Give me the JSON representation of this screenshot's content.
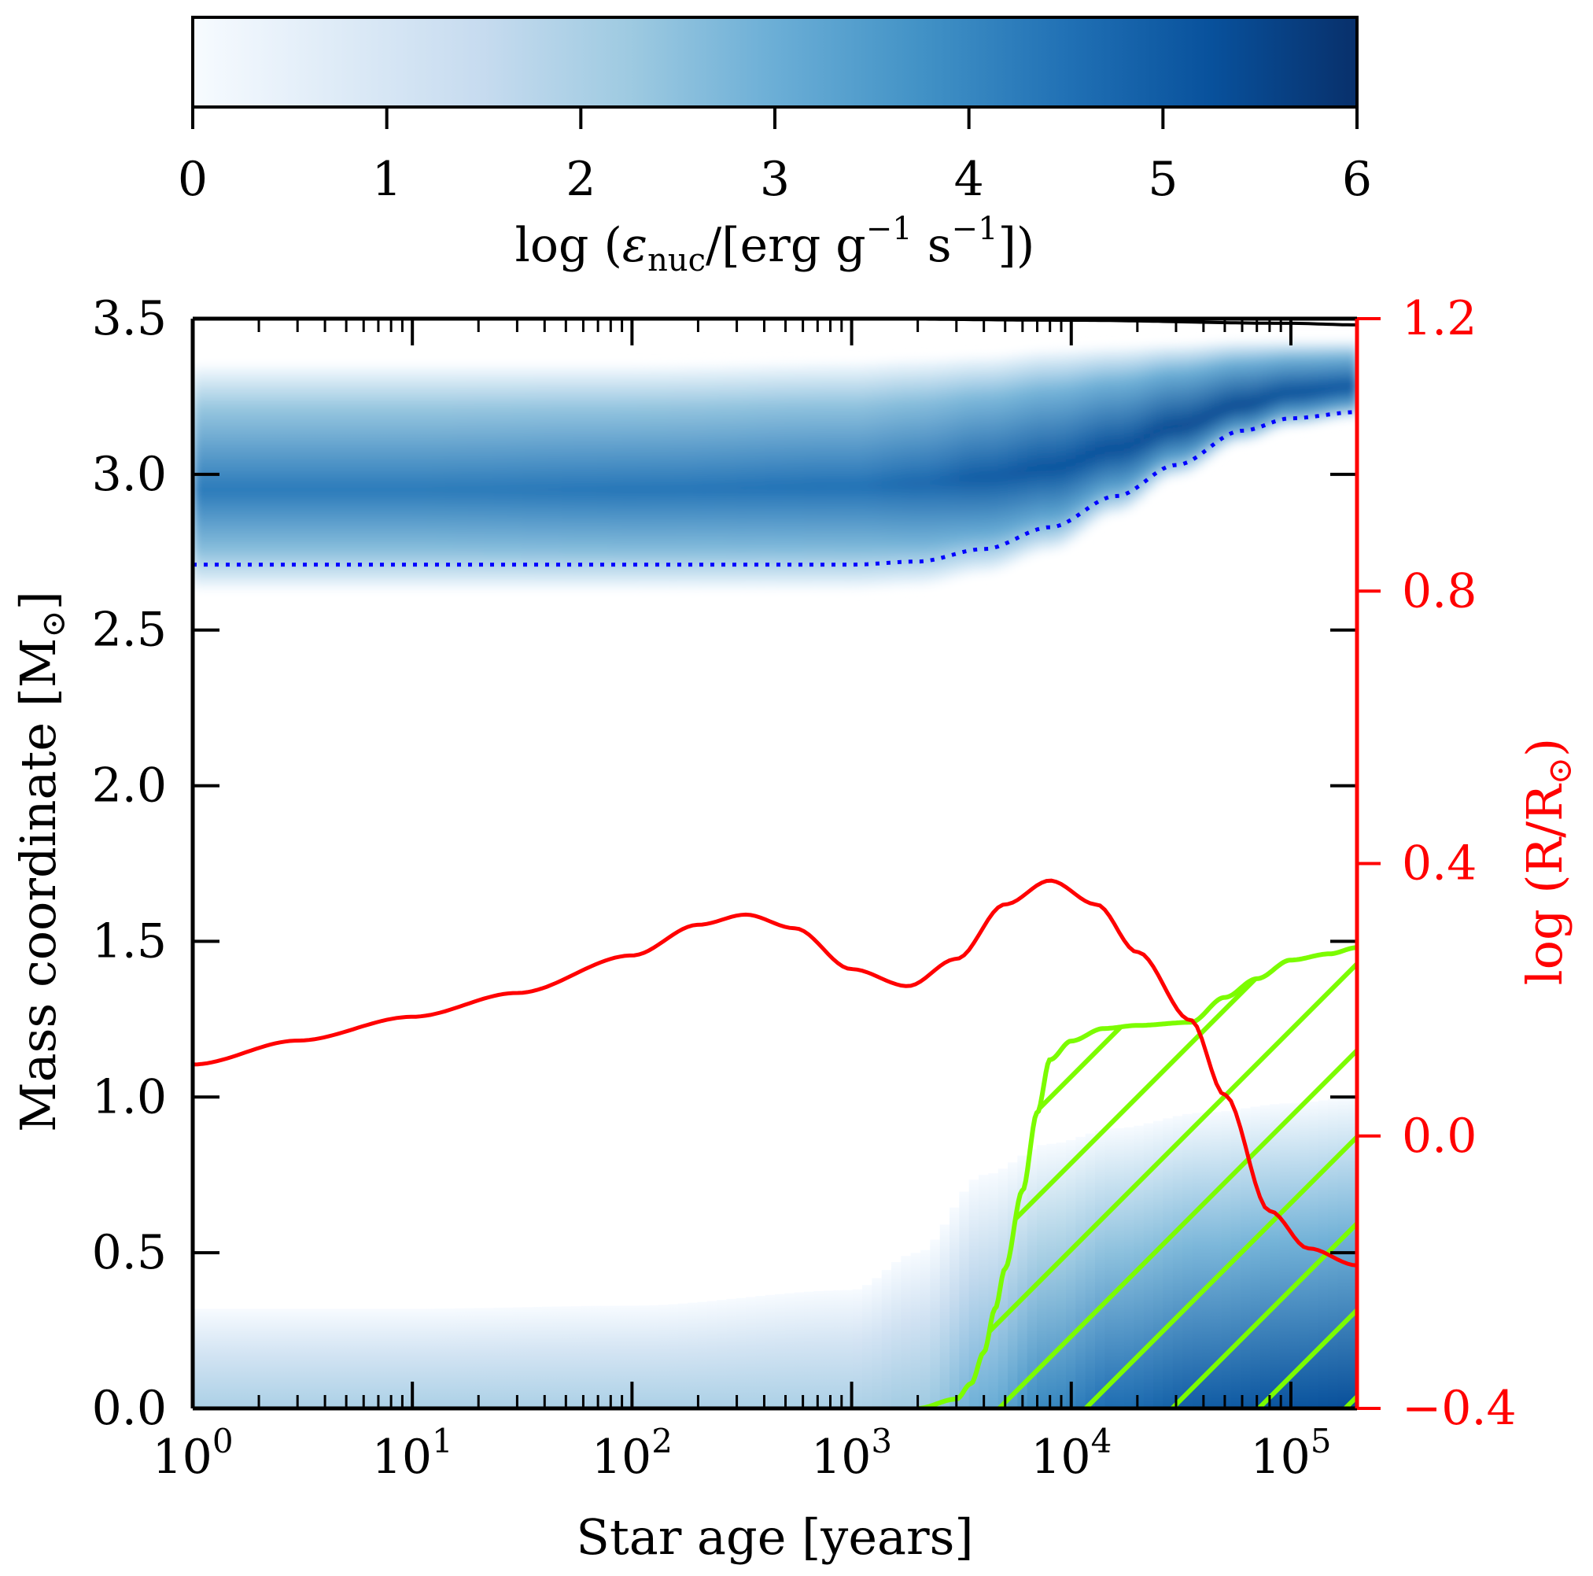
{
  "chart_data": {
    "type": "heatmap",
    "title": "",
    "colorbar": {
      "label": "log (ε_nuc/[erg g⁻¹ s⁻¹])",
      "label_parts": {
        "pre": "log (",
        "eps": "ε",
        "sub": "nuc",
        "mid": "/[erg g",
        "sup1": "−1",
        "mid2": " s",
        "sup2": "−1",
        "post": "])"
      },
      "range": [
        0,
        6
      ],
      "ticks": [
        "0",
        "1",
        "2",
        "3",
        "4",
        "5",
        "6"
      ],
      "colors": [
        "#f7fbff",
        "#deebf7",
        "#c6dbef",
        "#9ecae1",
        "#6baed6",
        "#4292c6",
        "#2171b5",
        "#08519c",
        "#08306b"
      ]
    },
    "xaxis": {
      "label": "Star age [years]",
      "scale": "log",
      "range": [
        1,
        200000
      ],
      "ticks": [
        {
          "value": 1,
          "base": "10",
          "exp": "0"
        },
        {
          "value": 10,
          "base": "10",
          "exp": "1"
        },
        {
          "value": 100,
          "base": "10",
          "exp": "2"
        },
        {
          "value": 1000,
          "base": "10",
          "exp": "3"
        },
        {
          "value": 10000,
          "base": "10",
          "exp": "4"
        },
        {
          "value": 100000,
          "base": "10",
          "exp": "5"
        }
      ]
    },
    "yaxis_left": {
      "label_pre": "Mass coordinate [M",
      "label_sub": "⊙",
      "label_post": "]",
      "range": [
        0,
        3.5
      ],
      "ticks": [
        "0.0",
        "0.5",
        "1.0",
        "1.5",
        "2.0",
        "2.5",
        "3.0",
        "3.5"
      ]
    },
    "yaxis_right": {
      "label_pre": "log (R/R",
      "label_sub": "⊙",
      "label_post": ")",
      "color": "#ff0000",
      "range": [
        -0.4,
        1.2
      ],
      "ticks": [
        "−0.4",
        "0.0",
        "0.4",
        "0.8",
        "1.2"
      ]
    },
    "total_mass_line": {
      "color": "#000000",
      "x": [
        1,
        1000,
        10000,
        100000,
        200000
      ],
      "y": [
        3.5,
        3.5,
        3.495,
        3.485,
        3.48
      ]
    },
    "shell_burning_band": {
      "x": [
        1,
        10,
        100,
        1000,
        2000,
        4000,
        8000,
        16000,
        30000,
        60000,
        100000,
        200000
      ],
      "lower": [
        2.63,
        2.63,
        2.63,
        2.63,
        2.64,
        2.68,
        2.75,
        2.87,
        2.99,
        3.1,
        3.15,
        3.18
      ],
      "upper": [
        3.35,
        3.35,
        3.35,
        3.36,
        3.37,
        3.38,
        3.4,
        3.41,
        3.42,
        3.43,
        3.43,
        3.43
      ],
      "center": [
        2.95,
        2.95,
        2.95,
        2.96,
        2.97,
        2.99,
        3.02,
        3.08,
        3.15,
        3.22,
        3.26,
        3.28
      ],
      "peak_log_eps": [
        4.3,
        4.3,
        4.4,
        4.5,
        4.7,
        5.0,
        5.2,
        5.3,
        5.4,
        5.4,
        5.3,
        5.2
      ]
    },
    "core_burning_region": {
      "x": [
        1,
        10,
        100,
        1000,
        2000,
        4000,
        8000,
        16000,
        40000,
        100000,
        200000
      ],
      "top": [
        0.32,
        0.32,
        0.33,
        0.38,
        0.5,
        0.75,
        0.85,
        0.9,
        0.95,
        0.98,
        1.0
      ],
      "center_log_eps": [
        2.0,
        2.0,
        2.0,
        2.0,
        2.2,
        3.0,
        4.0,
        4.6,
        5.0,
        5.2,
        5.3
      ]
    },
    "series": [
      {
        "name": "H-free core boundary",
        "color": "#0000ff",
        "style": "dotted",
        "x": [
          1,
          10,
          100,
          1000,
          2000,
          4000,
          8000,
          16000,
          30000,
          60000,
          100000,
          200000
        ],
        "y": [
          2.71,
          2.71,
          2.71,
          2.71,
          2.72,
          2.76,
          2.83,
          2.93,
          3.03,
          3.14,
          3.18,
          3.2
        ]
      },
      {
        "name": "log radius",
        "axis": "right",
        "color": "#ff0000",
        "x": [
          1,
          3,
          10,
          30,
          100,
          200,
          330,
          550,
          1000,
          1800,
          3000,
          5000,
          8000,
          13000,
          20000,
          35000,
          50000,
          80000,
          120000,
          200000
        ],
        "y": [
          0.105,
          0.14,
          0.175,
          0.21,
          0.265,
          0.31,
          0.325,
          0.305,
          0.245,
          0.22,
          0.26,
          0.34,
          0.375,
          0.34,
          0.27,
          0.17,
          0.06,
          -0.11,
          -0.165,
          -0.19
        ]
      },
      {
        "name": "convective core boundary",
        "color": "#7cfc00",
        "x": [
          2000,
          3000,
          3500,
          4000,
          4500,
          5000,
          6000,
          7000,
          8000,
          10000,
          14000,
          20000,
          35000,
          50000,
          70000,
          100000,
          150000,
          200000
        ],
        "y": [
          0.0,
          0.03,
          0.08,
          0.18,
          0.32,
          0.45,
          0.7,
          0.95,
          1.12,
          1.18,
          1.22,
          1.23,
          1.24,
          1.32,
          1.38,
          1.44,
          1.46,
          1.48
        ]
      }
    ],
    "convective_hatch_color": "#7cfc00"
  }
}
